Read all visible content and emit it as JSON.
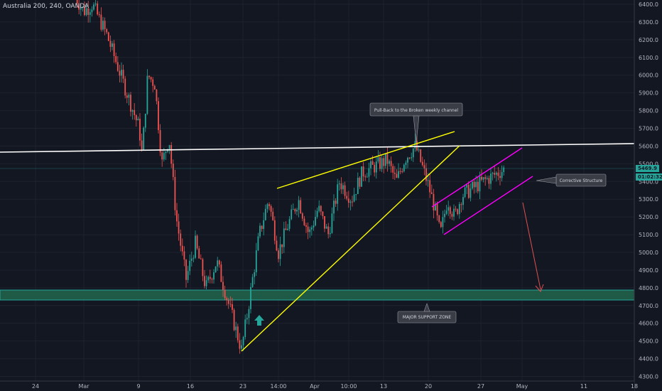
{
  "header": {
    "symbol": "Australia 200, 240, OANDA"
  },
  "price_tags": {
    "last": "5469.9",
    "countdown": "01:02:32"
  },
  "colors": {
    "background": "#131722",
    "bull": "#26a69a",
    "bear": "#ef5350",
    "wedge": "#ffff00",
    "channel": "#ff00ff",
    "level": "#ffffff",
    "zone": "#1e5a46",
    "arrow": "#e05050",
    "up_arrow": "#26a69a"
  },
  "annotations": {
    "pullback": "Pull-Back to the Broken weekly channel",
    "corrective": "Corrective Structure",
    "support": "MAJOR SUPPORT ZONE"
  },
  "chart_data": {
    "type": "candlestick",
    "y_ticks": [
      4300,
      4400,
      4500,
      4600,
      4700,
      4800,
      4900,
      5000,
      5100,
      5200,
      5300,
      5400,
      5500,
      5600,
      5700,
      5800,
      5900,
      6000,
      6100,
      6200,
      6300,
      6400
    ],
    "y_tick_labels": [
      "4300.0",
      "4400.0",
      "4500.0",
      "4600.0",
      "4700.0",
      "4800.0",
      "4900.0",
      "5000.0",
      "5100.0",
      "5200.0",
      "5300.0",
      "5400.0",
      "5500.0",
      "5600.0",
      "5700.0",
      "5800.0",
      "5900.0",
      "6000.0",
      "6100.0",
      "6200.0",
      "6300.0",
      "6400.0"
    ],
    "x_ticks": [
      "24",
      "Mar",
      "9",
      "16",
      "23",
      "14:00",
      "Apr",
      "10:00",
      "13",
      "20",
      "27",
      "May",
      "11",
      "18"
    ],
    "ylim": [
      4300,
      6420
    ],
    "last_price": 5469.9,
    "support_zone": [
      4720,
      4780
    ],
    "swing_path": [
      [
        "Feb 27",
        6430
      ],
      [
        "Mar 2",
        6360
      ],
      [
        "Mar 4",
        6400
      ],
      [
        "Mar 6",
        6230
      ],
      [
        "Mar 9",
        5700
      ],
      [
        "Mar 9",
        5550
      ],
      [
        "Mar 10",
        6000
      ],
      [
        "Mar 11",
        5950
      ],
      [
        "Mar 12",
        5500
      ],
      [
        "Mar 13",
        5650
      ],
      [
        "Mar 16",
        5200
      ],
      [
        "Mar 17",
        4850
      ],
      [
        "Mar 18",
        5050
      ],
      [
        "Mar 19",
        4800
      ],
      [
        "Mar 20",
        4950
      ],
      [
        "Mar 23",
        4450
      ],
      [
        "Mar 24",
        4650
      ],
      [
        "Mar 25",
        5100
      ],
      [
        "Mar 26",
        5300
      ],
      [
        "Mar 27",
        5000
      ],
      [
        "Mar 30",
        5150
      ],
      [
        "Mar 31",
        5300
      ],
      [
        "Apr 1",
        5100
      ],
      [
        "Apr 2",
        5250
      ],
      [
        "Apr 3",
        5100
      ],
      [
        "Apr 6",
        5400
      ],
      [
        "Apr 8",
        5300
      ],
      [
        "Apr 9",
        5450
      ],
      [
        "Apr 14",
        5520
      ],
      [
        "Apr 15",
        5400
      ],
      [
        "Apr 16",
        5530
      ],
      [
        "Apr 17",
        5600
      ],
      [
        "Apr 20",
        5380
      ],
      [
        "Apr 21",
        5250
      ],
      [
        "Apr 22",
        5100
      ],
      [
        "Apr 23",
        5300
      ],
      [
        "Apr 24",
        5200
      ],
      [
        "Apr 27",
        5320
      ],
      [
        "Apr 28",
        5400
      ],
      [
        "Apr 29",
        5470
      ]
    ]
  }
}
